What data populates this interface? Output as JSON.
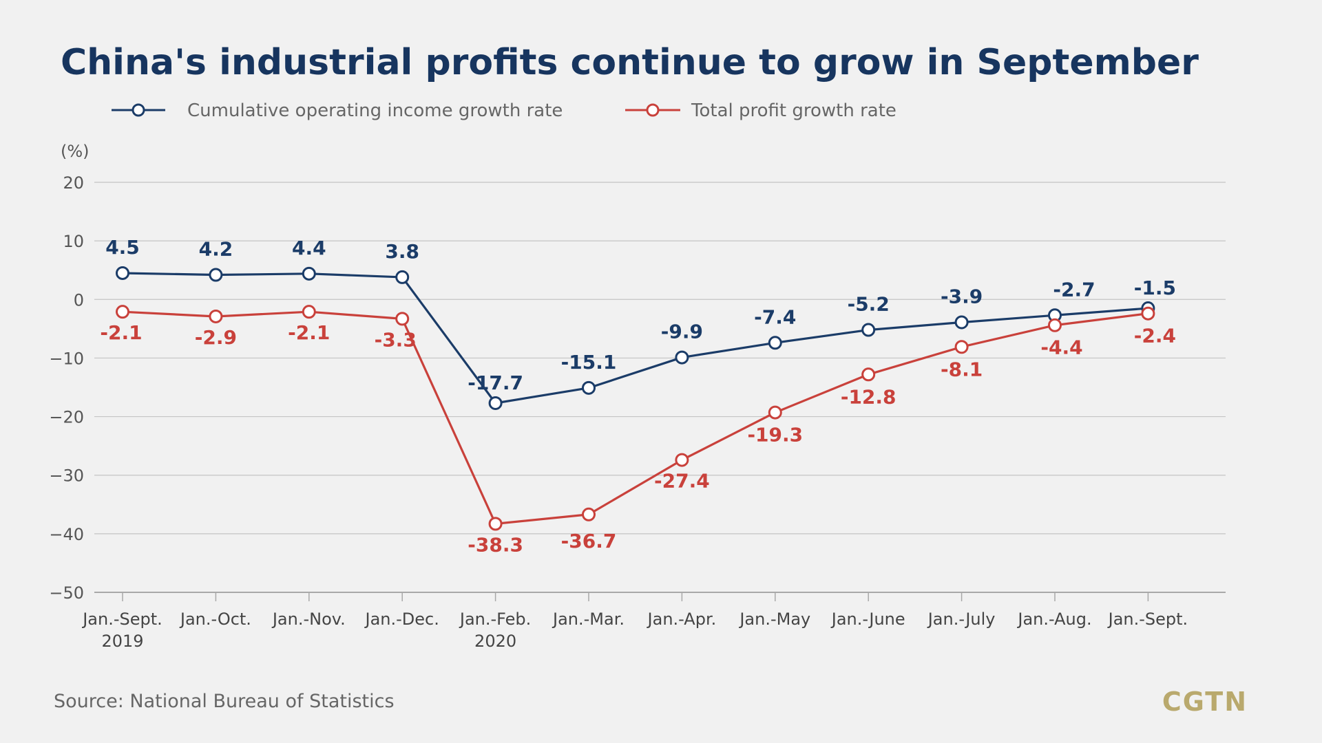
{
  "title": "China's industrial profits continue to grow in September",
  "source": "Source: National Bureau of Statistics",
  "brand": "CGTN",
  "colors": {
    "income": "#1b3c68",
    "profit": "#c9413b",
    "brand": "#b9a96d",
    "title": "#17355f"
  },
  "chart_data": {
    "type": "line",
    "unit_label": "(%)",
    "ylim": [
      -50,
      20
    ],
    "yticks": [
      20,
      10,
      0,
      -10,
      -20,
      -30,
      -40,
      -50
    ],
    "grid": true,
    "legend_position": "top-left",
    "categories": [
      {
        "line1": "Jan.-Sept.",
        "line2": "2019"
      },
      {
        "line1": "Jan.-Oct.",
        "line2": ""
      },
      {
        "line1": "Jan.-Nov.",
        "line2": ""
      },
      {
        "line1": "Jan.-Dec.",
        "line2": ""
      },
      {
        "line1": "Jan.-Feb.",
        "line2": "2020"
      },
      {
        "line1": "Jan.-Mar.",
        "line2": ""
      },
      {
        "line1": "Jan.-Apr.",
        "line2": ""
      },
      {
        "line1": "Jan.-May",
        "line2": ""
      },
      {
        "line1": "Jan.-June",
        "line2": ""
      },
      {
        "line1": "Jan.-July",
        "line2": ""
      },
      {
        "line1": "Jan.-Aug.",
        "line2": ""
      },
      {
        "line1": "Jan.-Sept.",
        "line2": ""
      }
    ],
    "series": [
      {
        "key": "income",
        "name": "Cumulative operating income growth rate",
        "values": [
          4.5,
          4.2,
          4.4,
          3.8,
          -17.7,
          -15.1,
          -9.9,
          -7.4,
          -5.2,
          -3.9,
          -2.7,
          -1.5
        ],
        "labels": [
          "4.5",
          "4.2",
          "4.4",
          "3.8",
          "-17.7",
          "-15.1",
          "-9.9",
          "-7.4",
          "-5.2",
          "-3.9",
          "-2.7",
          "-1.5"
        ]
      },
      {
        "key": "profit",
        "name": "Total profit growth rate",
        "values": [
          -2.1,
          -2.9,
          -2.1,
          -3.3,
          -38.3,
          -36.7,
          -27.4,
          -19.3,
          -12.8,
          -8.1,
          -4.4,
          -2.4
        ],
        "labels": [
          "-2.1",
          "-2.9",
          "-2.1",
          "-3.3",
          "-38.3",
          "-36.7",
          "-27.4",
          "-19.3",
          "-12.8",
          "-8.1",
          "-4.4",
          "-2.4"
        ]
      }
    ]
  }
}
